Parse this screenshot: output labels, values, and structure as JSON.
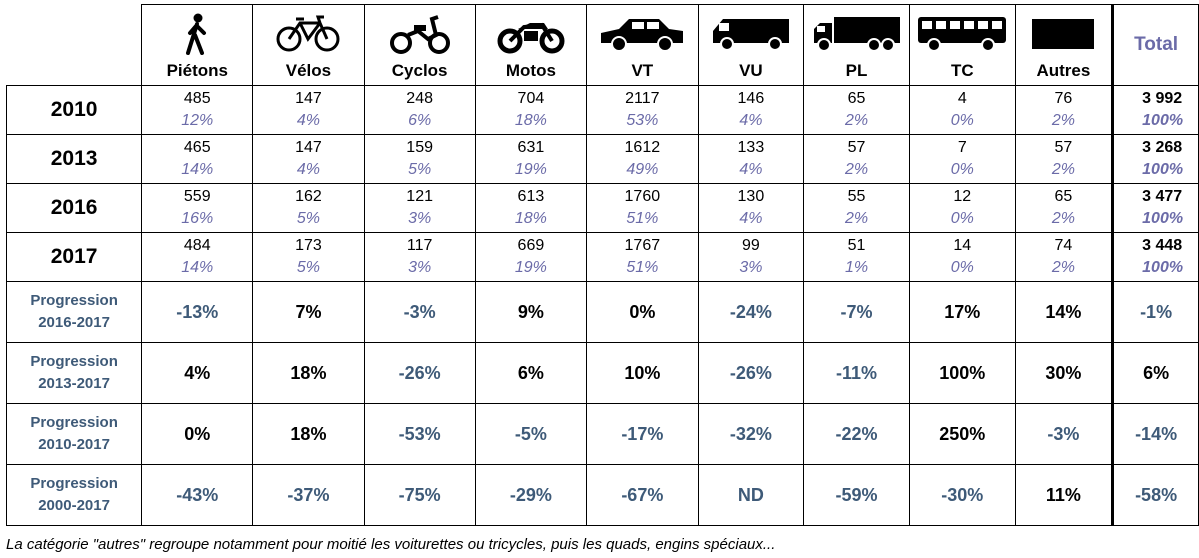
{
  "columns": [
    {
      "key": "pietons",
      "label": "Piétons",
      "icon": "pedestrian-icon"
    },
    {
      "key": "velos",
      "label": "Vélos",
      "icon": "bicycle-icon"
    },
    {
      "key": "cyclos",
      "label": "Cyclos",
      "icon": "moped-icon"
    },
    {
      "key": "motos",
      "label": "Motos",
      "icon": "motorcycle-icon"
    },
    {
      "key": "vt",
      "label": "VT",
      "icon": "car-icon"
    },
    {
      "key": "vu",
      "label": "VU",
      "icon": "van-icon"
    },
    {
      "key": "pl",
      "label": "PL",
      "icon": "truck-icon"
    },
    {
      "key": "tc",
      "label": "TC",
      "icon": "bus-icon"
    },
    {
      "key": "autres",
      "label": "Autres",
      "icon": "other-vehicle-icon"
    }
  ],
  "total_label": "Total",
  "years": [
    {
      "year": "2010",
      "counts": [
        "485",
        "147",
        "248",
        "704",
        "2117",
        "146",
        "65",
        "4",
        "76"
      ],
      "shares": [
        "12%",
        "4%",
        "6%",
        "18%",
        "53%",
        "4%",
        "2%",
        "0%",
        "2%"
      ],
      "total": "3 992",
      "total_share": "100%"
    },
    {
      "year": "2013",
      "counts": [
        "465",
        "147",
        "159",
        "631",
        "1612",
        "133",
        "57",
        "7",
        "57"
      ],
      "shares": [
        "14%",
        "4%",
        "5%",
        "19%",
        "49%",
        "4%",
        "2%",
        "0%",
        "2%"
      ],
      "total": "3 268",
      "total_share": "100%"
    },
    {
      "year": "2016",
      "counts": [
        "559",
        "162",
        "121",
        "613",
        "1760",
        "130",
        "55",
        "12",
        "65"
      ],
      "shares": [
        "16%",
        "5%",
        "3%",
        "18%",
        "51%",
        "4%",
        "2%",
        "0%",
        "2%"
      ],
      "total": "3 477",
      "total_share": "100%"
    },
    {
      "year": "2017",
      "counts": [
        "484",
        "173",
        "117",
        "669",
        "1767",
        "99",
        "51",
        "14",
        "74"
      ],
      "shares": [
        "14%",
        "5%",
        "3%",
        "19%",
        "51%",
        "3%",
        "1%",
        "0%",
        "2%"
      ],
      "total": "3 448",
      "total_share": "100%"
    }
  ],
  "progressions": [
    {
      "label_line1": "Progression",
      "label_line2": "2016-2017",
      "values": [
        "-13%",
        "7%",
        "-3%",
        "9%",
        "0%",
        "-24%",
        "-7%",
        "17%",
        "14%"
      ],
      "total": "-1%"
    },
    {
      "label_line1": "Progression",
      "label_line2": "2013-2017",
      "values": [
        "4%",
        "18%",
        "-26%",
        "6%",
        "10%",
        "-26%",
        "-11%",
        "100%",
        "30%"
      ],
      "total": "6%"
    },
    {
      "label_line1": "Progression",
      "label_line2": "2010-2017",
      "values": [
        "0%",
        "18%",
        "-53%",
        "-5%",
        "-17%",
        "-32%",
        "-22%",
        "250%",
        "-3%"
      ],
      "total": "-14%"
    },
    {
      "label_line1": "Progression",
      "label_line2": "2000-2017",
      "values": [
        "-43%",
        "-37%",
        "-75%",
        "-29%",
        "-67%",
        "ND",
        "-59%",
        "-30%",
        "11%"
      ],
      "total": "-58%"
    }
  ],
  "footnote": "La catégorie \"autres\" regroupe notamment pour moitié les voiturettes ou tricycles, puis les quads, engins spéciaux...",
  "colors": {
    "accent": "#6b6ba8",
    "negative": "#3e5a78",
    "text": "#000000"
  }
}
